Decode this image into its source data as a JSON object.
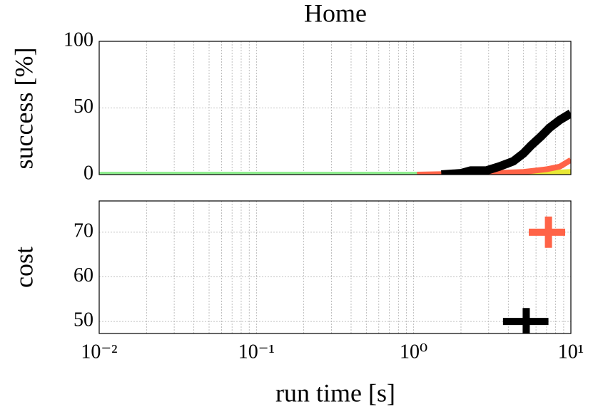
{
  "chart_data": [
    {
      "type": "line",
      "title": "Home",
      "ylabel": "success [%]",
      "ylim": [
        0,
        100
      ],
      "yticks": [
        0,
        50,
        100
      ],
      "grid": true,
      "series": [
        {
          "color": "#90ee90",
          "x": [
            0.01,
            10
          ],
          "values": [
            0,
            0
          ]
        },
        {
          "color": "#e8e835",
          "x": [
            3,
            7,
            10
          ],
          "values": [
            0,
            1,
            2
          ]
        },
        {
          "color": "#ff6347",
          "x": [
            1.05,
            3,
            5,
            7,
            8.5,
            10
          ],
          "values": [
            0,
            1,
            2,
            4,
            6,
            11
          ]
        },
        {
          "color": "#000000",
          "x": [
            1.5,
            2.0,
            2.3,
            2.9,
            3.5,
            4.3,
            5.0,
            5.6,
            6.5,
            7.3,
            8.5,
            10
          ],
          "values": [
            0,
            1,
            3,
            3,
            6,
            10,
            16,
            22,
            29,
            35,
            41,
            46
          ]
        }
      ]
    },
    {
      "type": "errorbar",
      "ylabel": "cost",
      "xlabel": "run time [s]",
      "log_x": true,
      "grid": true,
      "xlim": [
        0.01,
        10
      ],
      "xticks": [
        {
          "value": 0.01,
          "label": "10⁻²"
        },
        {
          "value": 0.1,
          "label": "10⁻¹"
        },
        {
          "value": 1,
          "label": "10⁰"
        },
        {
          "value": 10,
          "label": "10¹"
        }
      ],
      "xminorticks": [
        0.02,
        0.03,
        0.04,
        0.05,
        0.06,
        0.07,
        0.08,
        0.09,
        0.2,
        0.3,
        0.4,
        0.5,
        0.6,
        0.7,
        0.8,
        0.9,
        2,
        3,
        4,
        5,
        6,
        7,
        8,
        9
      ],
      "ylim": [
        47.3,
        77
      ],
      "yticks": [
        50,
        60,
        70
      ],
      "series": [
        {
          "color": "#ff6347",
          "x": [
            7.2
          ],
          "values": [
            70
          ],
          "yerr": [
            3.5
          ],
          "xlow": [
            5.4
          ],
          "xhigh": [
            9.2
          ]
        },
        {
          "color": "#000000",
          "x": [
            5.2
          ],
          "values": [
            50
          ],
          "yerr": [
            3
          ],
          "xlow": [
            3.7
          ],
          "xhigh": [
            7.2
          ]
        }
      ]
    }
  ]
}
